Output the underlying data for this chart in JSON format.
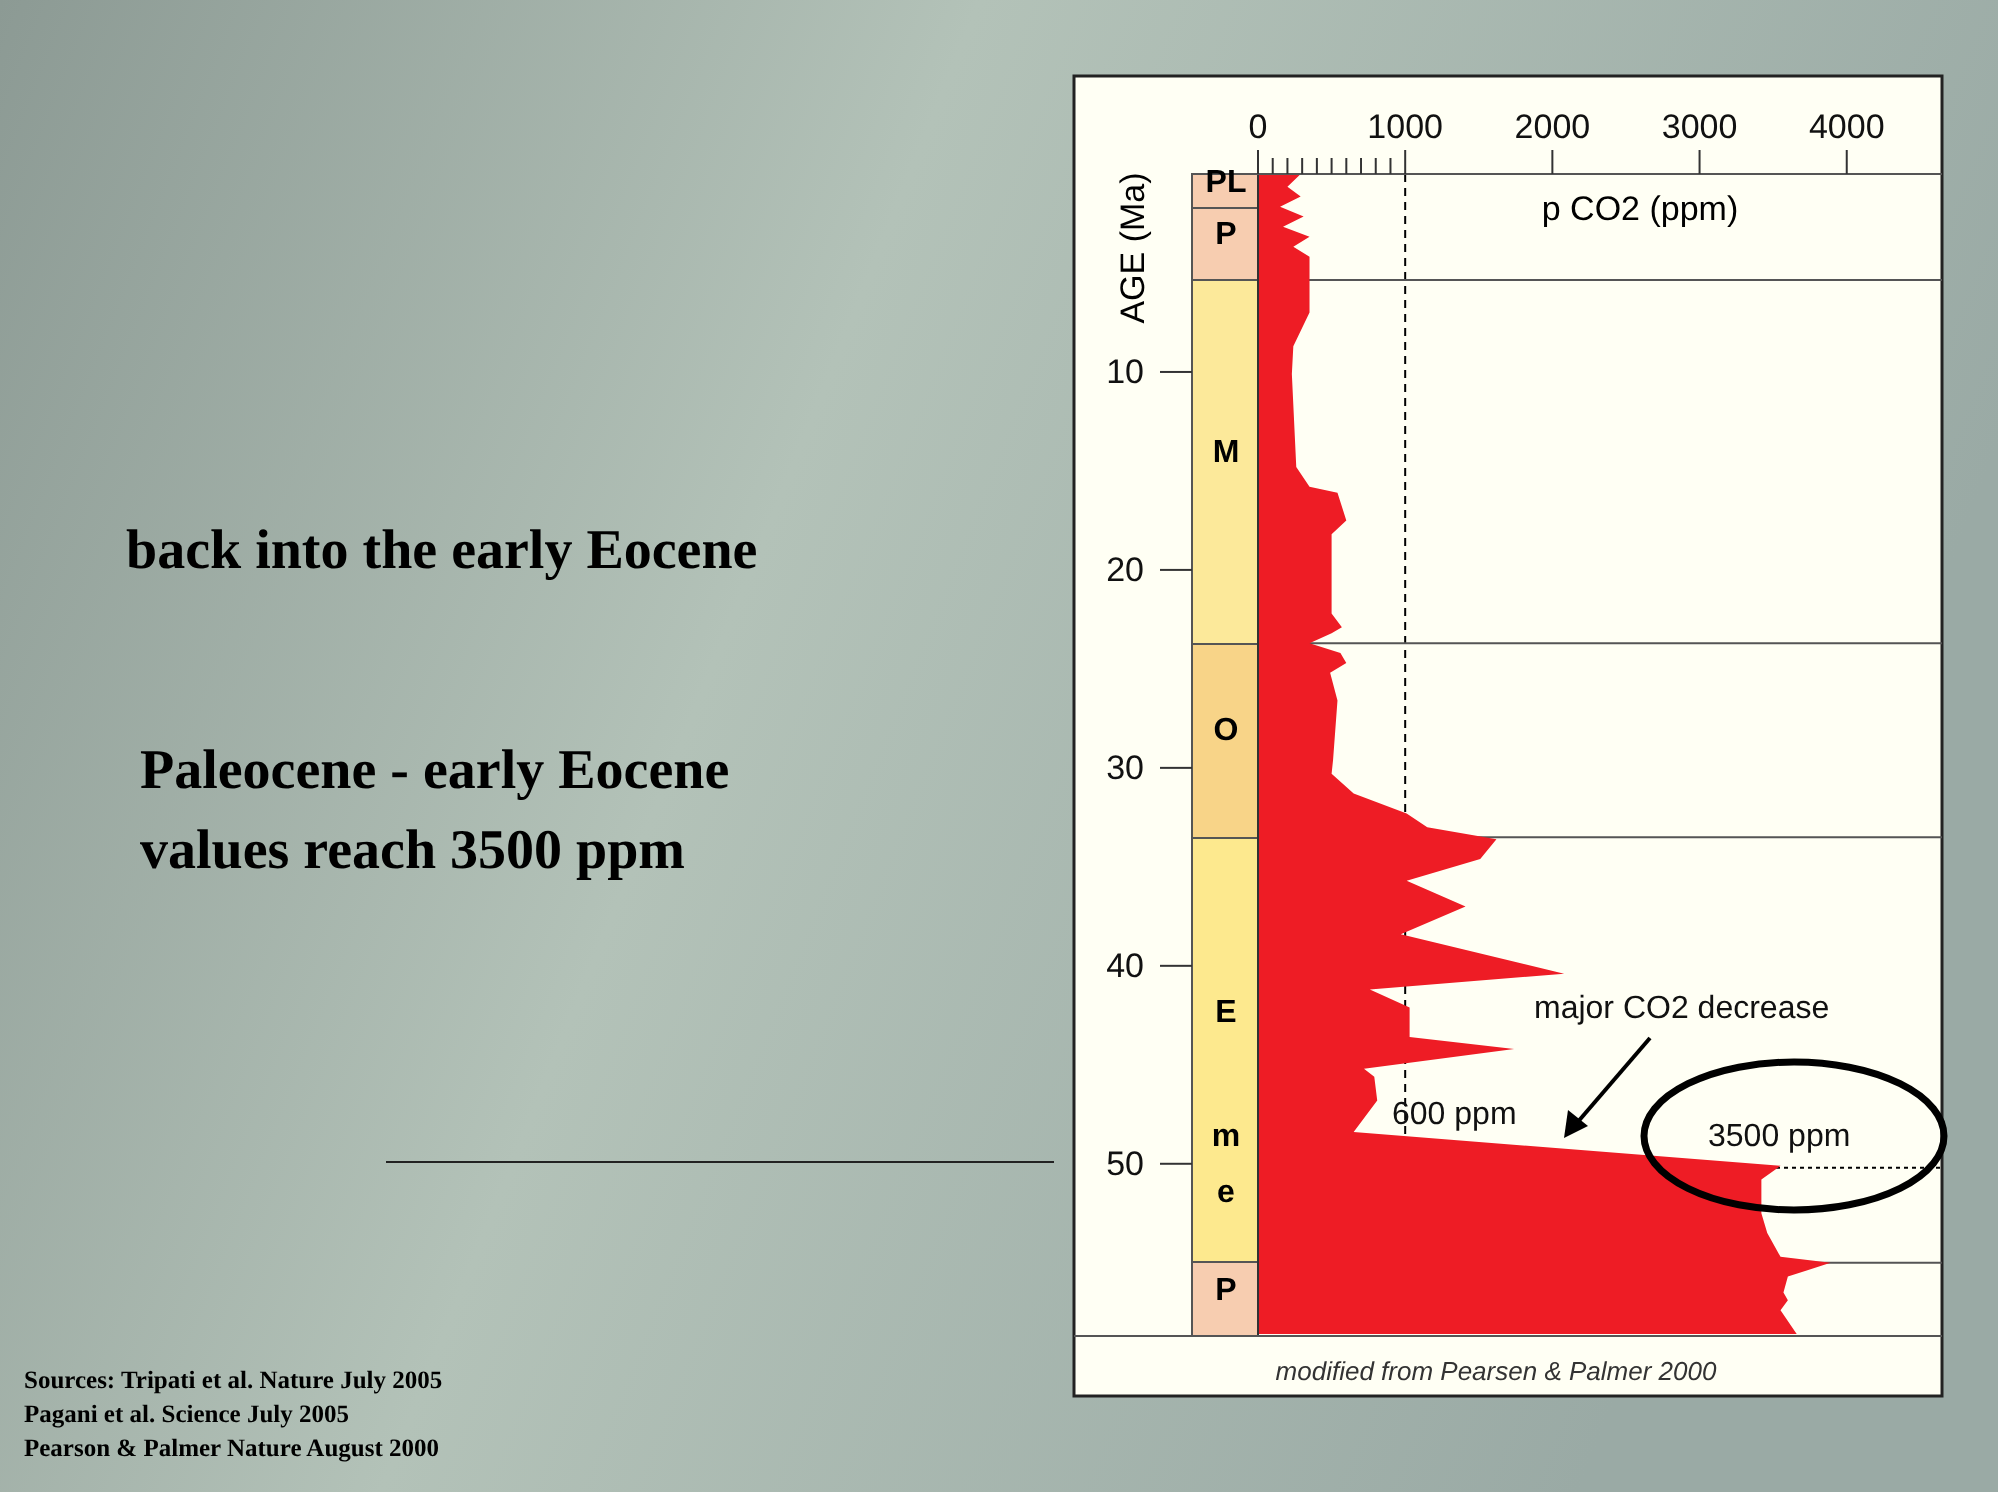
{
  "chart_data": {
    "type": "area",
    "orientation": "horizontal",
    "title": "back into the early Eocene",
    "subtitle": "Paleocene - early Eocene\nvalues reach 3500 ppm",
    "xlabel": "p CO2 (ppm)",
    "ylabel": "AGE (Ma)",
    "x": [
      0,
      0.64,
      1.14,
      1.65,
      2.15,
      2.66,
      3.17,
      3.67,
      4.18,
      5.35,
      7.0,
      8.7,
      10.1,
      14.8,
      15.8,
      16.1,
      17.5,
      18.2,
      22.2,
      22.9,
      23.2,
      23.7,
      24.2,
      24.7,
      25.2,
      26.6,
      29.6,
      30.3,
      31.3,
      32.3,
      33.0,
      33.6,
      34.6,
      35.7,
      37.0,
      38.4,
      40.4,
      41.2,
      42.1,
      43.6,
      44.2,
      45.2,
      45.6,
      46.8,
      48.4,
      50.1,
      50.8,
      52.5,
      53.5,
      54.7,
      55.0,
      55.7,
      56.5,
      56.9,
      57.4,
      58.6
    ],
    "series": [
      {
        "color": "#ee1c25",
        "values": [
          290,
          200,
          290,
          150,
          310,
          170,
          350,
          240,
          350,
          350,
          350,
          240,
          230,
          260,
          350,
          540,
          600,
          500,
          500,
          570,
          500,
          350,
          560,
          600,
          490,
          540,
          510,
          500,
          650,
          1010,
          1150,
          1620,
          1510,
          1010,
          1410,
          970,
          2080,
          760,
          1030,
          1030,
          1740,
          720,
          790,
          810,
          650,
          3550,
          3420,
          3420,
          3460,
          3550,
          3890,
          3600,
          3570,
          3600,
          3550,
          3660
        ]
      }
    ],
    "xlim": [
      0,
      4620
    ],
    "xticks": [
      0,
      {
        "value": 100,
        "label": null
      },
      {
        "value": 200,
        "label": null
      },
      {
        "value": 300,
        "label": null
      },
      {
        "value": 400,
        "label": null
      },
      {
        "value": 500,
        "label": null
      },
      {
        "value": 600,
        "label": null
      },
      {
        "value": 700,
        "label": null
      },
      {
        "value": 800,
        "label": null
      },
      {
        "value": 900,
        "label": null
      },
      1000,
      2000,
      3000,
      4000
    ],
    "ylim": [
      58.7,
      0
    ],
    "yticks": [
      10,
      20,
      30,
      40,
      50
    ],
    "ref_lines": [
      {
        "axis": "x",
        "value": 1000,
        "line_style": "dashed",
        "color": "#000000"
      },
      {
        "axis": "y",
        "value": 5.35,
        "line_style": "solid",
        "color": "#555555"
      },
      {
        "axis": "y",
        "value": 23.7,
        "line_style": "solid",
        "color": "#555555"
      },
      {
        "axis": "y",
        "value": 33.5,
        "line_style": "solid",
        "color": "#555555"
      },
      {
        "axis": "y",
        "value": 50.2,
        "line_style": "dotted",
        "color": "#000000"
      },
      {
        "axis": "y",
        "value": 55,
        "line_style": "solid",
        "color": "#555555"
      }
    ],
    "annotations": [
      "modified from Pearsen & Palmer 2000",
      "Sources: Tripati et al. Nature July 2005",
      "Pagani et al. Science July 2005",
      "Pearson & Palmer Nature August 2000",
      "major CO2 decrease",
      "600 ppm",
      "3500 ppm",
      "PL",
      "P",
      "M",
      "O",
      "E",
      "m",
      "e",
      "P"
    ]
  }
}
